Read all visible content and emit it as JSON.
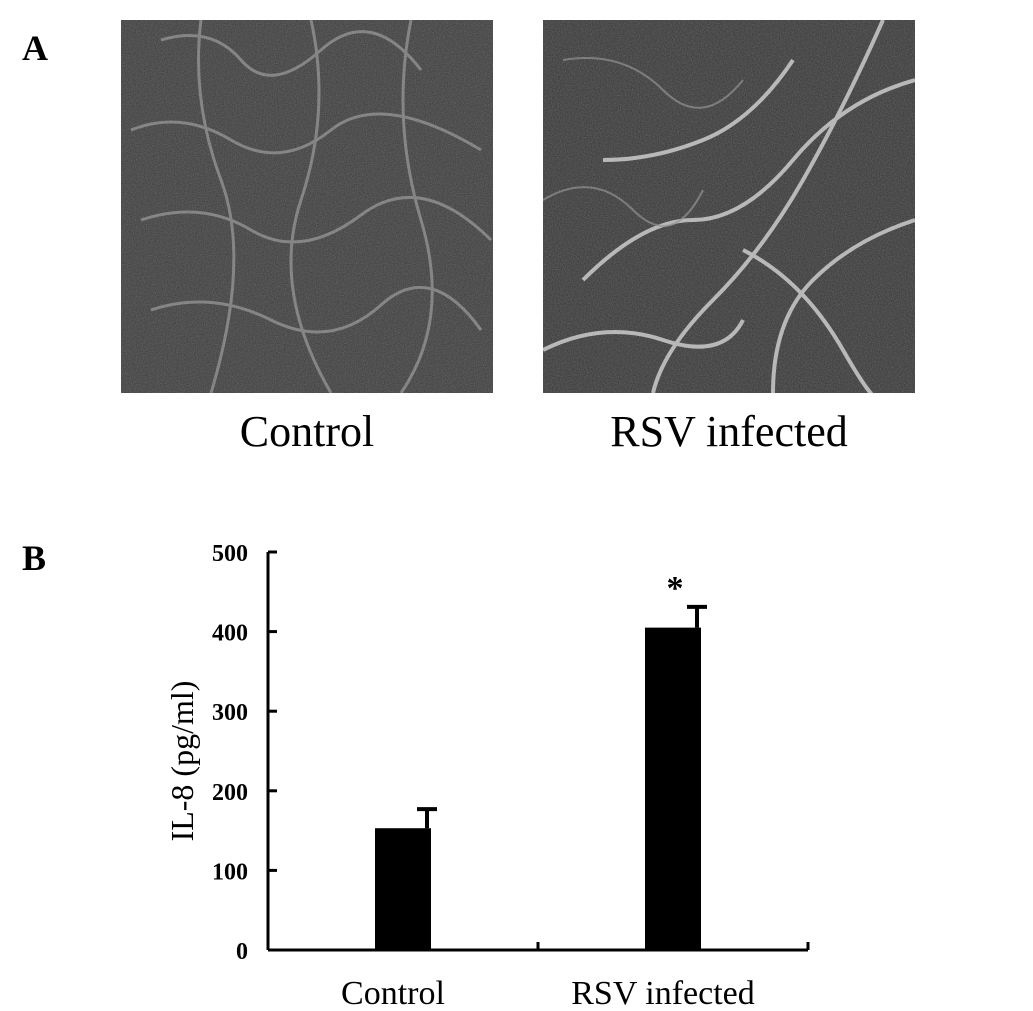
{
  "panels": {
    "a_label": "A",
    "b_label": "B"
  },
  "micrographs": [
    {
      "label": "Control"
    },
    {
      "label": "RSV infected"
    }
  ],
  "chart_data": {
    "type": "bar",
    "categories": [
      "Control",
      "RSV infected"
    ],
    "values": [
      153,
      405
    ],
    "error": [
      24,
      26
    ],
    "significance": [
      "",
      "*"
    ],
    "ylabel": "IL-8 (pg/ml)",
    "xlabel": "",
    "ylim": [
      0,
      500
    ],
    "yticks": [
      0,
      100,
      200,
      300,
      400,
      500
    ],
    "bar_color": "#000000",
    "grid": false
  }
}
